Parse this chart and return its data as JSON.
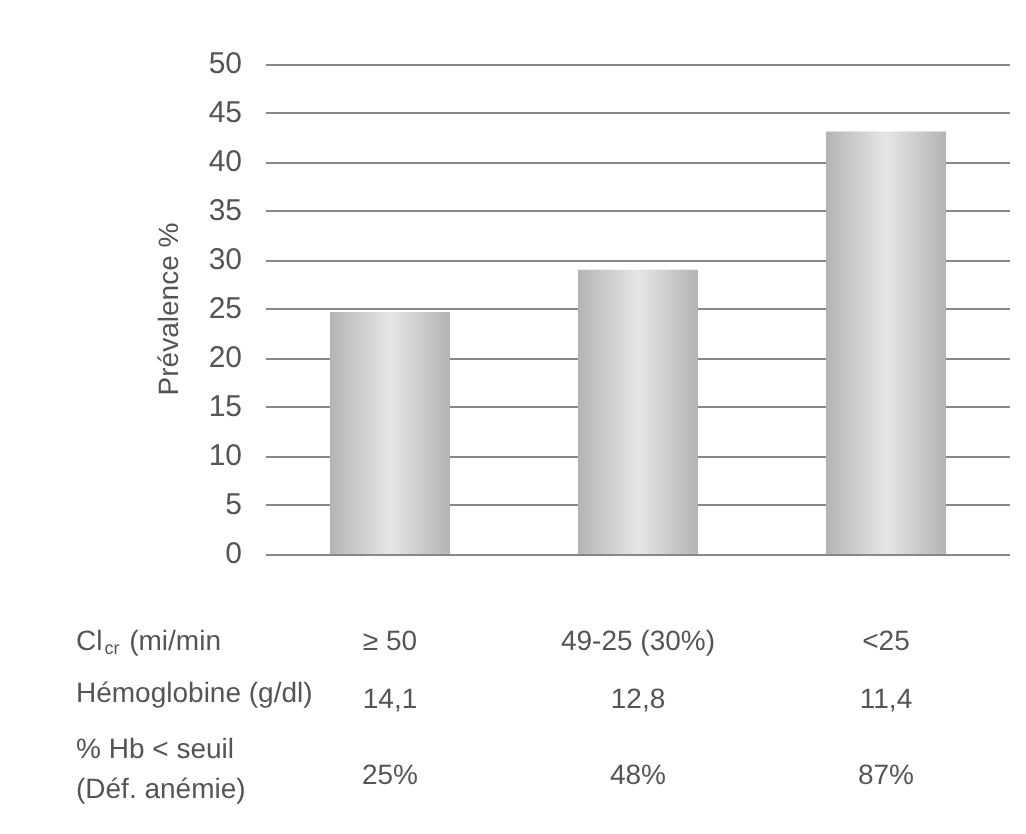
{
  "chart_data": {
    "type": "bar",
    "ylabel": "Prévalence %",
    "xlabel": "Cl$_{cr}$ (mi/min",
    "categories": [
      "≥ 50",
      "49-25 (30%)",
      "<25"
    ],
    "values": [
      24.7,
      29,
      43.1
    ],
    "color": "#b4b4b4",
    "ylim": [
      0,
      50
    ],
    "yticks": [
      0,
      5,
      10,
      15,
      20,
      25,
      30,
      35,
      40,
      45,
      50
    ],
    "grid": "y",
    "annotations": [
      "Hémoglobine (g/dl)",
      "14,1",
      "12,8",
      "11,4",
      "% Hb < seuil\n(Déf. anémie)",
      "25%",
      "48%",
      "87%"
    ]
  }
}
